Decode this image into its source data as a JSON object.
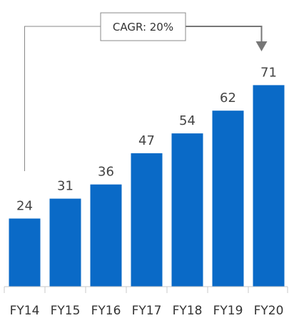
{
  "chart_data": {
    "type": "bar",
    "categories": [
      "FY14",
      "FY15",
      "FY16",
      "FY17",
      "FY18",
      "FY19",
      "FY20"
    ],
    "values": [
      24,
      31,
      36,
      47,
      54,
      62,
      71
    ],
    "title": "",
    "xlabel": "",
    "ylabel": "",
    "ylim": [
      0,
      80
    ],
    "grid": false,
    "bar_color": "#0a6ac7",
    "annotation": {
      "text": "CAGR: 20%",
      "from_category": "FY14",
      "to_category": "FY20"
    }
  }
}
